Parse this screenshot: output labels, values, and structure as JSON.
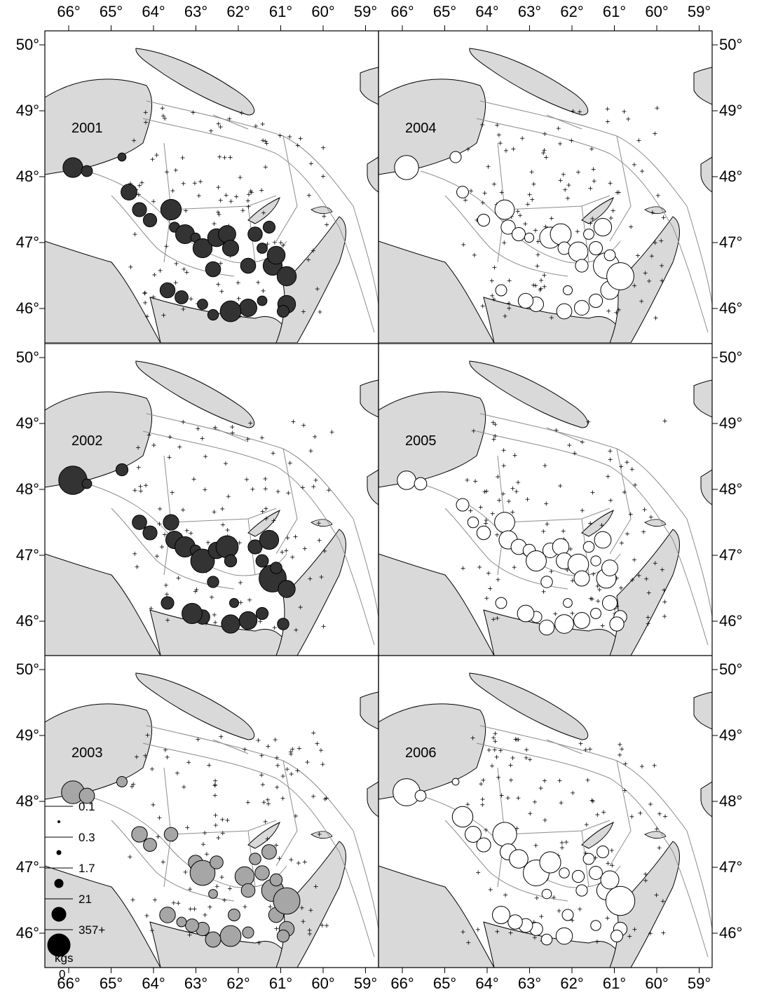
{
  "top_longitude_labels": {
    "left_half": [
      "66°",
      "65°",
      "64°",
      "63°",
      "62°",
      "61°",
      "60°",
      "59°"
    ],
    "right_half": [
      "66°",
      "65°",
      "64°",
      "63°",
      "62°",
      "61°",
      "60°",
      "59°"
    ]
  },
  "bottom_longitude_labels": {
    "left_half": [
      "66°",
      "65°",
      "64°",
      "63°",
      "62°",
      "61°",
      "60°",
      "59°"
    ],
    "right_half": [
      "66°",
      "65°",
      "64°",
      "63°",
      "62°",
      "61°",
      "60°",
      "59°"
    ]
  },
  "latitude_labels": [
    "50°",
    "49°",
    "48°",
    "47°",
    "46°"
  ],
  "panels": [
    {
      "year": "2001",
      "style": "filled-dark"
    },
    {
      "year": "2004",
      "style": "open-white"
    },
    {
      "year": "2002",
      "style": "filled-dark"
    },
    {
      "year": "2005",
      "style": "open-white"
    },
    {
      "year": "2003",
      "style": "filled-grey"
    },
    {
      "year": "2006",
      "style": "open-white"
    }
  ],
  "legend": {
    "values": [
      "0.1",
      "0.3",
      "1.7",
      "21",
      "357+"
    ],
    "unit": "kgs",
    "zero": "0"
  },
  "colors": {
    "land": "#d9d9d9",
    "dark_symbol": "#333333",
    "grey_symbol": "#a6a6a6",
    "open_symbol": "#ffffff",
    "contour": "#8c8c8c"
  }
}
